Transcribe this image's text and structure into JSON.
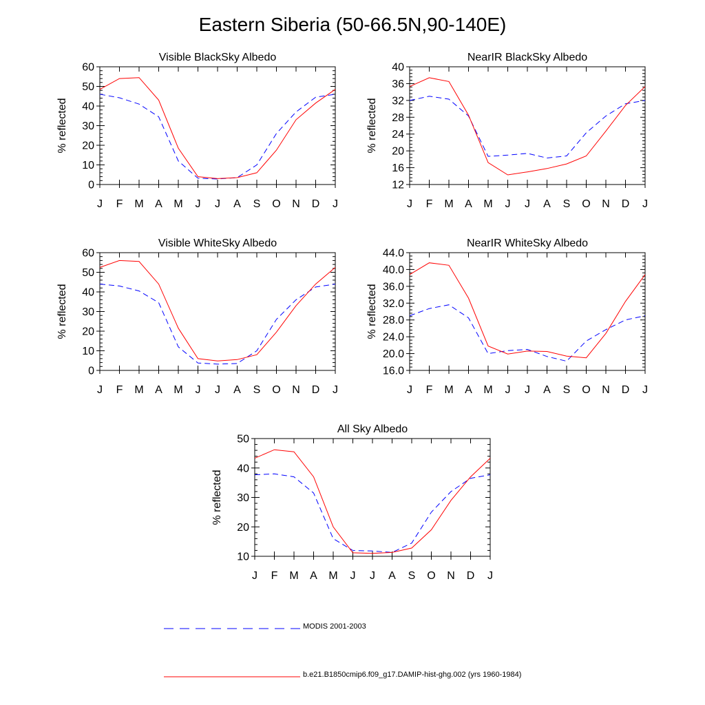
{
  "title": "Eastern Siberia (50-66.5N,90-140E)",
  "legend": {
    "position": "bottom",
    "entries": [
      {
        "label": "MODIS 2001-2003",
        "color": "#0000ff",
        "style": "dashed"
      },
      {
        "label": "b.e21.B1850cmip6.f09_g17.DAMIP-hist-ghg.002 (yrs 1960-1984)",
        "color": "#ff0000",
        "style": "solid"
      }
    ]
  },
  "chart_data": [
    {
      "type": "line",
      "title": "Visible BlackSky Albedo",
      "ylabel": "% reflected",
      "xlabel": "",
      "categories": [
        "J",
        "F",
        "M",
        "A",
        "M",
        "J",
        "J",
        "A",
        "S",
        "O",
        "N",
        "D",
        "J"
      ],
      "ylim": [
        0,
        60
      ],
      "yticks": [
        0,
        10,
        20,
        30,
        40,
        50,
        60
      ],
      "ytick_labels": [
        "0",
        "10",
        "20",
        "30",
        "40",
        "50",
        "60"
      ],
      "series": [
        {
          "color": "#0000ff",
          "style": "dashed",
          "values": [
            46,
            44.2,
            41,
            34.5,
            12,
            3.2,
            2.8,
            3.5,
            10,
            26,
            37,
            44.5,
            46
          ]
        },
        {
          "color": "#ff0000",
          "style": "solid",
          "values": [
            48.5,
            54,
            54.5,
            43,
            18.5,
            4,
            3,
            3.5,
            6,
            17.5,
            33,
            41.5,
            48.5
          ]
        }
      ]
    },
    {
      "type": "line",
      "title": "NearIR BlackSky Albedo",
      "ylabel": "% reflected",
      "xlabel": "",
      "categories": [
        "J",
        "F",
        "M",
        "A",
        "M",
        "J",
        "J",
        "A",
        "S",
        "O",
        "N",
        "D",
        "J"
      ],
      "ylim": [
        12,
        40
      ],
      "yticks": [
        12,
        16,
        20,
        24,
        28,
        32,
        36,
        40
      ],
      "ytick_labels": [
        "12",
        "16",
        "20",
        "24",
        "28",
        "32",
        "36",
        "40"
      ],
      "series": [
        {
          "color": "#0000ff",
          "style": "dashed",
          "values": [
            32,
            33,
            32.3,
            28.3,
            18.7,
            19,
            19.4,
            18.3,
            18.8,
            24.3,
            28.3,
            31.2,
            32
          ]
        },
        {
          "color": "#ff0000",
          "style": "solid",
          "values": [
            35.3,
            37.4,
            36.5,
            28.5,
            17.2,
            14.3,
            15,
            15.8,
            16.9,
            18.8,
            24.7,
            30.8,
            35.3
          ]
        }
      ]
    },
    {
      "type": "line",
      "title": "Visible WhiteSky Albedo",
      "ylabel": "% reflected",
      "xlabel": "",
      "categories": [
        "J",
        "F",
        "M",
        "A",
        "M",
        "J",
        "J",
        "A",
        "S",
        "O",
        "N",
        "D",
        "J"
      ],
      "ylim": [
        0,
        60
      ],
      "yticks": [
        0,
        10,
        20,
        30,
        40,
        50,
        60
      ],
      "ytick_labels": [
        "0",
        "10",
        "20",
        "30",
        "40",
        "50",
        "60"
      ],
      "series": [
        {
          "color": "#0000ff",
          "style": "dashed",
          "values": [
            44,
            43,
            40.5,
            34.5,
            12,
            3.8,
            3.2,
            3.5,
            10,
            26,
            36,
            42.5,
            44
          ]
        },
        {
          "color": "#ff0000",
          "style": "solid",
          "values": [
            52.5,
            56,
            55.5,
            44,
            21.5,
            6,
            4.8,
            5.5,
            8,
            19.5,
            33,
            44,
            52.5
          ]
        }
      ]
    },
    {
      "type": "line",
      "title": "NearIR WhiteSky Albedo",
      "ylabel": "% reflected",
      "xlabel": "",
      "categories": [
        "J",
        "F",
        "M",
        "A",
        "M",
        "J",
        "J",
        "A",
        "S",
        "O",
        "N",
        "D",
        "J"
      ],
      "ylim": [
        16,
        44
      ],
      "yticks": [
        16,
        20,
        24,
        28,
        32,
        36,
        40,
        44
      ],
      "ytick_labels": [
        "16.0",
        "20.0",
        "24.0",
        "28.0",
        "32.0",
        "36.0",
        "40.0",
        "44.0"
      ],
      "series": [
        {
          "color": "#0000ff",
          "style": "dashed",
          "values": [
            29,
            30.7,
            31.6,
            28.5,
            20,
            20.7,
            21,
            19.3,
            18.2,
            23,
            25.7,
            28,
            29
          ]
        },
        {
          "color": "#ff0000",
          "style": "solid",
          "values": [
            38.8,
            41.6,
            41,
            33.2,
            21.8,
            19.9,
            20.6,
            20.5,
            19.4,
            19,
            24.8,
            32.4,
            38.8
          ]
        }
      ]
    },
    {
      "type": "line",
      "title": "All Sky Albedo",
      "ylabel": "% reflected",
      "xlabel": "",
      "categories": [
        "J",
        "F",
        "M",
        "A",
        "M",
        "J",
        "J",
        "A",
        "S",
        "O",
        "N",
        "D",
        "J"
      ],
      "ylim": [
        10,
        50
      ],
      "yticks": [
        10,
        20,
        30,
        40,
        50
      ],
      "ytick_labels": [
        "10",
        "20",
        "30",
        "40",
        "50"
      ],
      "series": [
        {
          "color": "#0000ff",
          "style": "dashed",
          "values": [
            37.7,
            38,
            37,
            31.5,
            16,
            12,
            11.8,
            11.3,
            14.5,
            25,
            32,
            36.5,
            37.7
          ]
        },
        {
          "color": "#ff0000",
          "style": "solid",
          "values": [
            43.3,
            46.2,
            45.5,
            37,
            20,
            11.2,
            11,
            11.3,
            12.8,
            19,
            29,
            37,
            43.3
          ]
        }
      ]
    }
  ]
}
